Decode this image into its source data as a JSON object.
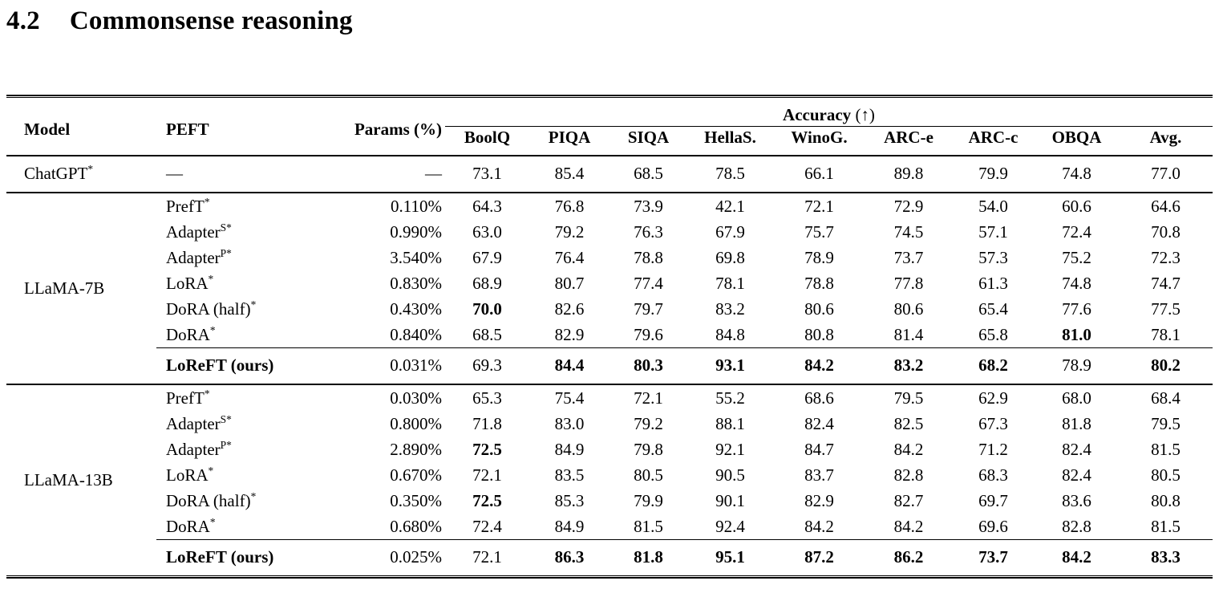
{
  "section": {
    "number": "4.2",
    "title": "Commonsense reasoning"
  },
  "table": {
    "headers": {
      "model": "Model",
      "peft": "PEFT",
      "params": "Params (%)",
      "accuracy_group_label": "Accuracy",
      "accuracy_group_suffix": "(↑)"
    },
    "accuracy_columns": [
      "BoolQ",
      "PIQA",
      "SIQA",
      "HellaS.",
      "WinoG.",
      "ARC-e",
      "ARC-c",
      "OBQA",
      "Avg."
    ],
    "groups": [
      {
        "model": {
          "text": "ChatGPT",
          "sup": "*"
        },
        "rows": [
          {
            "peft": {
              "text": "—",
              "sup": ""
            },
            "params": "—",
            "values": [
              "73.1",
              "85.4",
              "68.5",
              "78.5",
              "66.1",
              "89.8",
              "79.9",
              "74.8",
              "77.0"
            ],
            "bold": []
          }
        ]
      },
      {
        "model": {
          "text": "LLaMA-7B",
          "sup": ""
        },
        "rows": [
          {
            "peft": {
              "text": "PrefT",
              "sup": "*"
            },
            "params": "0.110%",
            "values": [
              "64.3",
              "76.8",
              "73.9",
              "42.1",
              "72.1",
              "72.9",
              "54.0",
              "60.6",
              "64.6"
            ],
            "bold": []
          },
          {
            "peft": {
              "text": "Adapter",
              "sup": "S*"
            },
            "params": "0.990%",
            "values": [
              "63.0",
              "79.2",
              "76.3",
              "67.9",
              "75.7",
              "74.5",
              "57.1",
              "72.4",
              "70.8"
            ],
            "bold": []
          },
          {
            "peft": {
              "text": "Adapter",
              "sup": "P*"
            },
            "params": "3.540%",
            "values": [
              "67.9",
              "76.4",
              "78.8",
              "69.8",
              "78.9",
              "73.7",
              "57.3",
              "75.2",
              "72.3"
            ],
            "bold": []
          },
          {
            "peft": {
              "text": "LoRA",
              "sup": "*"
            },
            "params": "0.830%",
            "values": [
              "68.9",
              "80.7",
              "77.4",
              "78.1",
              "78.8",
              "77.8",
              "61.3",
              "74.8",
              "74.7"
            ],
            "bold": []
          },
          {
            "peft": {
              "text": "DoRA (half)",
              "sup": "*"
            },
            "params": "0.430%",
            "values": [
              "70.0",
              "82.6",
              "79.7",
              "83.2",
              "80.6",
              "80.6",
              "65.4",
              "77.6",
              "77.5"
            ],
            "bold": [
              0
            ]
          },
          {
            "peft": {
              "text": "DoRA",
              "sup": "*"
            },
            "params": "0.840%",
            "values": [
              "68.5",
              "82.9",
              "79.6",
              "84.8",
              "80.8",
              "81.4",
              "65.8",
              "81.0",
              "78.1"
            ],
            "bold": [
              7
            ]
          }
        ],
        "final_row": {
          "peft": {
            "text": "LoReFT (ours)",
            "sup": ""
          },
          "label_bold": true,
          "params": "0.031%",
          "values": [
            "69.3",
            "84.4",
            "80.3",
            "93.1",
            "84.2",
            "83.2",
            "68.2",
            "78.9",
            "80.2"
          ],
          "bold": [
            1,
            2,
            3,
            4,
            5,
            6,
            8
          ]
        }
      },
      {
        "model": {
          "text": "LLaMA-13B",
          "sup": ""
        },
        "rows": [
          {
            "peft": {
              "text": "PrefT",
              "sup": "*"
            },
            "params": "0.030%",
            "values": [
              "65.3",
              "75.4",
              "72.1",
              "55.2",
              "68.6",
              "79.5",
              "62.9",
              "68.0",
              "68.4"
            ],
            "bold": []
          },
          {
            "peft": {
              "text": "Adapter",
              "sup": "S*"
            },
            "params": "0.800%",
            "values": [
              "71.8",
              "83.0",
              "79.2",
              "88.1",
              "82.4",
              "82.5",
              "67.3",
              "81.8",
              "79.5"
            ],
            "bold": []
          },
          {
            "peft": {
              "text": "Adapter",
              "sup": "P*"
            },
            "params": "2.890%",
            "values": [
              "72.5",
              "84.9",
              "79.8",
              "92.1",
              "84.7",
              "84.2",
              "71.2",
              "82.4",
              "81.5"
            ],
            "bold": [
              0
            ]
          },
          {
            "peft": {
              "text": "LoRA",
              "sup": "*"
            },
            "params": "0.670%",
            "values": [
              "72.1",
              "83.5",
              "80.5",
              "90.5",
              "83.7",
              "82.8",
              "68.3",
              "82.4",
              "80.5"
            ],
            "bold": []
          },
          {
            "peft": {
              "text": "DoRA (half)",
              "sup": "*"
            },
            "params": "0.350%",
            "values": [
              "72.5",
              "85.3",
              "79.9",
              "90.1",
              "82.9",
              "82.7",
              "69.7",
              "83.6",
              "80.8"
            ],
            "bold": [
              0
            ]
          },
          {
            "peft": {
              "text": "DoRA",
              "sup": "*"
            },
            "params": "0.680%",
            "values": [
              "72.4",
              "84.9",
              "81.5",
              "92.4",
              "84.2",
              "84.2",
              "69.6",
              "82.8",
              "81.5"
            ],
            "bold": []
          }
        ],
        "final_row": {
          "peft": {
            "text": "LoReFT (ours)",
            "sup": ""
          },
          "label_bold": true,
          "params": "0.025%",
          "values": [
            "72.1",
            "86.3",
            "81.8",
            "95.1",
            "87.2",
            "86.2",
            "73.7",
            "84.2",
            "83.3"
          ],
          "bold": [
            1,
            2,
            3,
            4,
            5,
            6,
            7,
            8
          ]
        }
      }
    ]
  }
}
